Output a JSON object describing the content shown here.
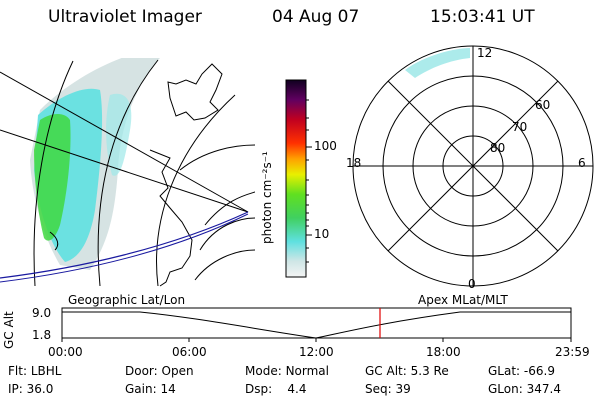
{
  "header": {
    "instrument": "Ultraviolet Imager",
    "date": "04 Aug 07",
    "time": "15:03:41  UT"
  },
  "colorbar": {
    "label": "photon cm⁻²s⁻¹",
    "ticks": [
      "100",
      "10"
    ]
  },
  "polar": {
    "mlt_labels": {
      "top": "12",
      "left": "18",
      "right": "6",
      "bottom": "0"
    },
    "lat_labels": [
      "60",
      "70",
      "80"
    ]
  },
  "orbit": {
    "y_axis_label": "GC Alt",
    "y_ticks": [
      "9.0",
      "1.8"
    ],
    "left_caption": "Geographic Lat/Lon",
    "right_caption": "Apex  MLat/MLT",
    "x_ticks": [
      "00:00",
      "06:00",
      "12:00",
      "18:00",
      "23:59"
    ],
    "current_time_color": "#e00000"
  },
  "info": {
    "row1": [
      {
        "label": "Flt:",
        "value": "LBHL"
      },
      {
        "label": "Door:",
        "value": "Open"
      },
      {
        "label": "Mode:",
        "value": "Normal"
      },
      {
        "label": "GC Alt:",
        "value": "5.3 Re"
      },
      {
        "label": "GLat:",
        "value": "-66.9"
      }
    ],
    "row2": [
      {
        "label": "IP:",
        "value": "36.0"
      },
      {
        "label": "Gain:",
        "value": "14"
      },
      {
        "label": "Dsp:",
        "value": "4.4"
      },
      {
        "label": "Seq:",
        "value": "39"
      },
      {
        "label": "GLon:",
        "value": "347.4"
      }
    ]
  },
  "colors": {
    "aurora_cyan": "#5fe0e0",
    "aurora_green": "#40d840",
    "aurora_grey": "#cfdede"
  }
}
